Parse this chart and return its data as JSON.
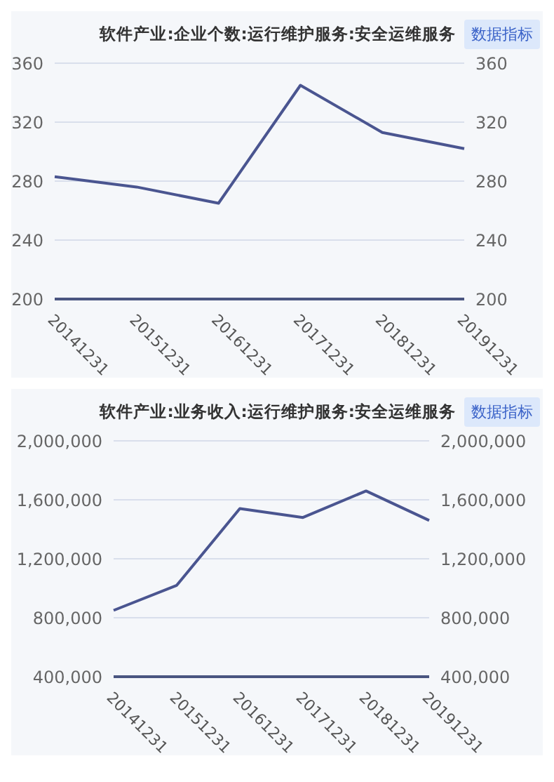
{
  "chart_data": [
    {
      "type": "line",
      "title": "软件产业:企业个数:运行维护服务:安全运维服务",
      "annotations": [
        "数据指标"
      ],
      "categories": [
        "20141231",
        "20151231",
        "20161231",
        "20171231",
        "20181231",
        "20191231"
      ],
      "series": [
        {
          "color": "#4a5590",
          "values": [
            283,
            276,
            265,
            345,
            313,
            302
          ]
        }
      ],
      "ylim": [
        200,
        360
      ],
      "yticks": [
        200,
        240,
        280,
        320,
        360
      ],
      "y2lim": [
        200,
        360
      ],
      "y2ticks": [
        200,
        240,
        280,
        320,
        360
      ],
      "grid": "y",
      "legend": false,
      "marker": "none",
      "line_style": "solid"
    },
    {
      "type": "line",
      "title": "软件产业:业务收入:运行维护服务:安全运维服务",
      "annotations": [
        "数据指标"
      ],
      "categories": [
        "20141231",
        "20151231",
        "20161231",
        "20171231",
        "20181231",
        "20191231"
      ],
      "series": [
        {
          "color": "#4a5590",
          "values": [
            850000,
            1020000,
            1540000,
            1480000,
            1660000,
            1460000
          ]
        }
      ],
      "ylim": [
        400000,
        2000000
      ],
      "yticks": [
        {
          "value": 400000,
          "label": "400,000"
        },
        {
          "value": 800000,
          "label": "800,000"
        },
        {
          "value": 1200000,
          "label": "1,200,000"
        },
        {
          "value": 1600000,
          "label": "1,600,000"
        },
        {
          "value": 2000000,
          "label": "2,000,000"
        }
      ],
      "y2lim": [
        400000,
        2000000
      ],
      "y2ticks": [
        {
          "value": 400000,
          "label": "400,000"
        },
        {
          "value": 800000,
          "label": "800,000"
        },
        {
          "value": 1200000,
          "label": "1,200,000"
        },
        {
          "value": 1600000,
          "label": "1,600,000"
        },
        {
          "value": 2000000,
          "label": "2,000,000"
        }
      ],
      "grid": "y",
      "legend": false,
      "marker": "none",
      "line_style": "solid"
    }
  ]
}
